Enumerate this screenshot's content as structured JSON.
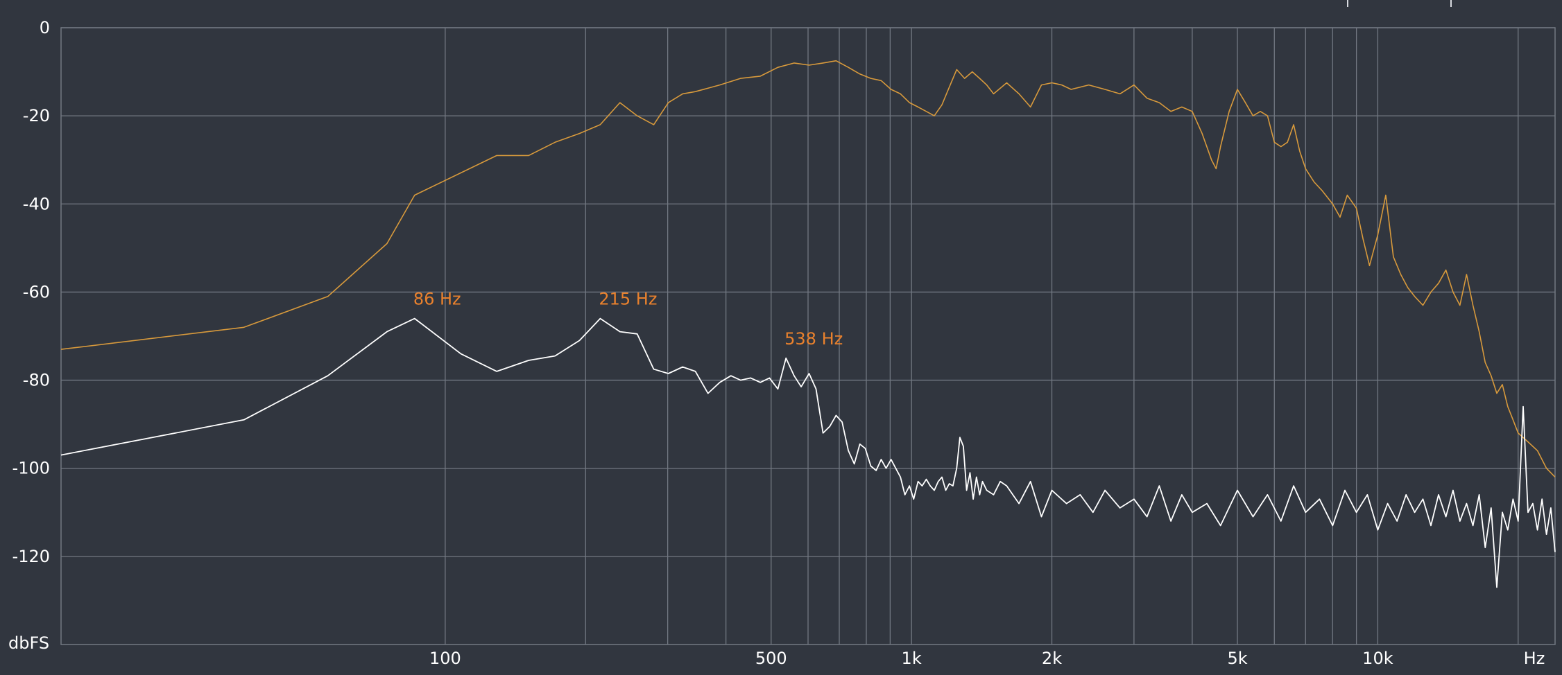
{
  "chart_data": {
    "type": "line",
    "title": "",
    "x_scale": "log",
    "xlim": [
      15,
      24000
    ],
    "ylim": [
      -140,
      0
    ],
    "x_unit_label": "Hz",
    "y_unit_label": "dbFS",
    "grid": true,
    "colors": {
      "background": "#31363f",
      "grid": "#727882",
      "series_1": "#d89a3c",
      "series_2": "#ffffff",
      "peak_label": "#e9812d",
      "text": "#ffffff"
    },
    "y_ticks": [
      {
        "value": 0,
        "label": "0"
      },
      {
        "value": -20,
        "label": "-20"
      },
      {
        "value": -40,
        "label": "-40"
      },
      {
        "value": -60,
        "label": "-60"
      },
      {
        "value": -80,
        "label": "-80"
      },
      {
        "value": -100,
        "label": "-100"
      },
      {
        "value": -120,
        "label": "-120"
      }
    ],
    "x_ticks": [
      {
        "value": 100,
        "label": "100"
      },
      {
        "value": 500,
        "label": "500"
      },
      {
        "value": 1000,
        "label": "1k"
      },
      {
        "value": 2000,
        "label": "2k"
      },
      {
        "value": 5000,
        "label": "5k"
      },
      {
        "value": 10000,
        "label": "10k"
      }
    ],
    "x_gridlines": [
      100,
      200,
      300,
      400,
      500,
      600,
      700,
      800,
      900,
      1000,
      2000,
      3000,
      4000,
      5000,
      6000,
      7000,
      8000,
      9000,
      10000,
      20000
    ],
    "series": [
      {
        "color": "#d89a3c",
        "x": [
          15,
          37,
          56,
          75,
          86,
          129,
          151,
          172,
          194,
          215,
          237,
          258,
          280,
          301,
          323,
          344,
          388,
          430,
          474,
          517,
          560,
          603,
          646,
          689,
          732,
          775,
          818,
          861,
          904,
          947,
          990,
          1033,
          1076,
          1119,
          1162,
          1205,
          1250,
          1300,
          1350,
          1400,
          1450,
          1500,
          1600,
          1700,
          1800,
          1900,
          2000,
          2100,
          2200,
          2400,
          2600,
          2800,
          3000,
          3200,
          3400,
          3600,
          3800,
          4000,
          4200,
          4400,
          4500,
          4600,
          4800,
          5000,
          5200,
          5400,
          5600,
          5800,
          6000,
          6200,
          6400,
          6600,
          6800,
          7000,
          7300,
          7600,
          8000,
          8300,
          8600,
          9000,
          9300,
          9600,
          10000,
          10400,
          10800,
          11200,
          11600,
          12000,
          12500,
          13000,
          13500,
          14000,
          14500,
          15000,
          15500,
          16000,
          16500,
          17000,
          17500,
          18000,
          18500,
          19000,
          19500,
          20000,
          21000,
          22000,
          23000,
          24000
        ],
        "y": [
          -73,
          -68,
          -61,
          -49,
          -38,
          -29,
          -29,
          -26,
          -24,
          -22,
          -17,
          -20,
          -22,
          -17,
          -15,
          -14.5,
          -13,
          -11.5,
          -11,
          -9,
          -8,
          -8.5,
          -8,
          -7.5,
          -9,
          -10.5,
          -11.5,
          -12,
          -14,
          -15,
          -17,
          -18,
          -19,
          -20,
          -17.5,
          -13.5,
          -9.5,
          -11.5,
          -10,
          -11.5,
          -13,
          -15,
          -12.5,
          -15,
          -18,
          -13,
          -12.5,
          -13,
          -14,
          -13,
          -14,
          -15,
          -13,
          -16,
          -17,
          -19,
          -18,
          -19,
          -24,
          -30,
          -32,
          -27,
          -19,
          -14,
          -17,
          -20,
          -19,
          -20,
          -26,
          -27,
          -26,
          -22,
          -28,
          -32,
          -35,
          -37,
          -40,
          -43,
          -38,
          -41,
          -48,
          -54,
          -47,
          -38,
          -52,
          -56,
          -59,
          -61,
          -63,
          -60,
          -58,
          -55,
          -60,
          -63,
          -56,
          -63,
          -69,
          -76,
          -79,
          -83,
          -81,
          -86,
          -89,
          -92,
          -94,
          -96,
          -100,
          -102
        ]
      },
      {
        "color": "#ffffff",
        "x": [
          15,
          37,
          56,
          75,
          86,
          108,
          129,
          151,
          172,
          194,
          215,
          237,
          258,
          280,
          301,
          323,
          344,
          366,
          388,
          410,
          430,
          452,
          474,
          496,
          517,
          538,
          560,
          580,
          603,
          624,
          646,
          668,
          689,
          710,
          732,
          754,
          775,
          796,
          818,
          840,
          861,
          882,
          904,
          925,
          947,
          968,
          990,
          1011,
          1033,
          1054,
          1076,
          1097,
          1119,
          1141,
          1162,
          1184,
          1205,
          1227,
          1250,
          1270,
          1292,
          1313,
          1335,
          1356,
          1378,
          1400,
          1420,
          1450,
          1500,
          1550,
          1600,
          1700,
          1800,
          1900,
          2000,
          2150,
          2300,
          2450,
          2600,
          2800,
          3000,
          3200,
          3400,
          3600,
          3800,
          4000,
          4300,
          4600,
          5000,
          5400,
          5800,
          6200,
          6600,
          7000,
          7500,
          8000,
          8500,
          9000,
          9500,
          10000,
          10500,
          11000,
          11500,
          12000,
          12500,
          13000,
          13500,
          14000,
          14500,
          15000,
          15500,
          16000,
          16500,
          17000,
          17500,
          18000,
          18500,
          19000,
          19500,
          20000,
          20500,
          21000,
          21500,
          22000,
          22500,
          23000,
          23500,
          24000
        ],
        "y": [
          -97,
          -89,
          -79,
          -69,
          -66,
          -74,
          -78,
          -75.5,
          -74.5,
          -71,
          -66,
          -69,
          -69.5,
          -77.5,
          -78.5,
          -77,
          -78,
          -83,
          -80.5,
          -79,
          -80,
          -79.5,
          -80.5,
          -79.5,
          -82,
          -75,
          -79,
          -81.5,
          -78.5,
          -82,
          -92,
          -90.5,
          -88,
          -89.5,
          -96,
          -99,
          -94.5,
          -95.5,
          -99.5,
          -100.5,
          -98,
          -100,
          -98,
          -100,
          -102,
          -106,
          -104,
          -107,
          -103,
          -104,
          -102.5,
          -104,
          -105,
          -103,
          -102,
          -105,
          -103.5,
          -104,
          -100,
          -93,
          -95,
          -105,
          -101,
          -107,
          -102,
          -106,
          -103,
          -105,
          -106,
          -103,
          -104,
          -108,
          -103,
          -111,
          -105,
          -108,
          -106,
          -110,
          -105,
          -109,
          -107,
          -111,
          -104,
          -112,
          -106,
          -110,
          -108,
          -113,
          -105,
          -111,
          -106,
          -112,
          -104,
          -110,
          -107,
          -113,
          -105,
          -110,
          -106,
          -114,
          -108,
          -112,
          -106,
          -110,
          -107,
          -113,
          -106,
          -111,
          -105,
          -112,
          -108,
          -113,
          -106,
          -118,
          -109,
          -127,
          -110,
          -114,
          -107,
          -112,
          -86,
          -110,
          -108,
          -114,
          -107,
          -115,
          -109,
          -119
        ]
      }
    ],
    "annotations": [
      {
        "text": "86 Hz",
        "x": 86,
        "y": -66
      },
      {
        "text": "215 Hz",
        "x": 215,
        "y": -66
      },
      {
        "text": "538 Hz",
        "x": 538,
        "y": -75
      }
    ]
  }
}
